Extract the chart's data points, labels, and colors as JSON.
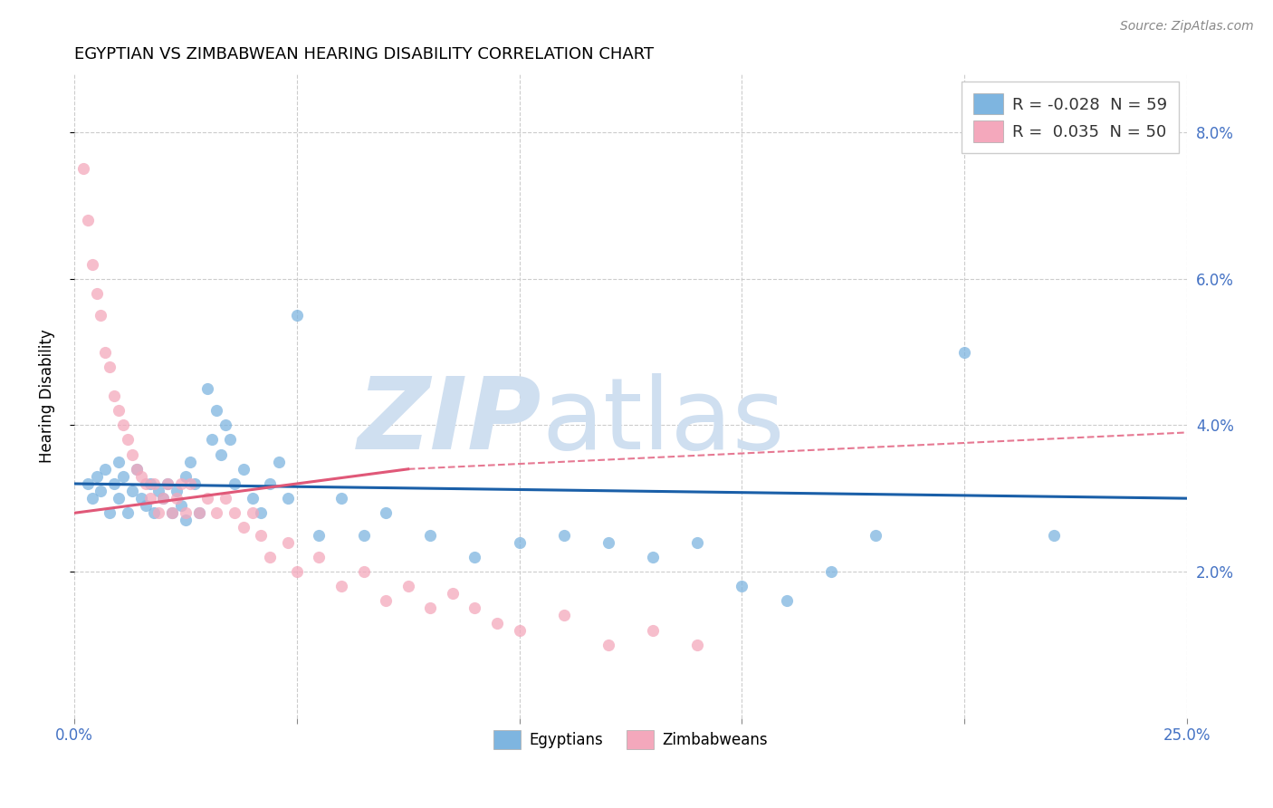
{
  "title": "EGYPTIAN VS ZIMBABWEAN HEARING DISABILITY CORRELATION CHART",
  "source": "Source: ZipAtlas.com",
  "ylabel": "Hearing Disability",
  "y_ticks": [
    0.02,
    0.04,
    0.06,
    0.08
  ],
  "y_tick_labels": [
    "2.0%",
    "4.0%",
    "6.0%",
    "8.0%"
  ],
  "xlim": [
    0.0,
    0.25
  ],
  "ylim": [
    0.0,
    0.088
  ],
  "blue_R": "-0.028",
  "blue_N": "59",
  "pink_R": "0.035",
  "pink_N": "50",
  "legend_label_blue": "Egyptians",
  "legend_label_pink": "Zimbabweans",
  "blue_color": "#7eb5e0",
  "pink_color": "#f4a8bc",
  "blue_line_color": "#1a5fa8",
  "pink_line_color": "#e05878",
  "watermark_color": "#cfdff0",
  "blue_line_y0": 0.032,
  "blue_line_y1": 0.03,
  "pink_line_y0": 0.028,
  "pink_line_solid_x1": 0.075,
  "pink_line_y_solid1": 0.034,
  "pink_line_y_dashed1": 0.039,
  "blue_scatter_x": [
    0.003,
    0.004,
    0.005,
    0.006,
    0.007,
    0.008,
    0.009,
    0.01,
    0.01,
    0.011,
    0.012,
    0.013,
    0.014,
    0.015,
    0.016,
    0.017,
    0.018,
    0.019,
    0.02,
    0.021,
    0.022,
    0.023,
    0.024,
    0.025,
    0.025,
    0.026,
    0.027,
    0.028,
    0.03,
    0.031,
    0.032,
    0.033,
    0.034,
    0.035,
    0.036,
    0.038,
    0.04,
    0.042,
    0.044,
    0.046,
    0.048,
    0.05,
    0.055,
    0.06,
    0.065,
    0.07,
    0.08,
    0.09,
    0.1,
    0.11,
    0.12,
    0.13,
    0.14,
    0.15,
    0.16,
    0.17,
    0.18,
    0.2,
    0.22
  ],
  "blue_scatter_y": [
    0.032,
    0.03,
    0.033,
    0.031,
    0.034,
    0.028,
    0.032,
    0.035,
    0.03,
    0.033,
    0.028,
    0.031,
    0.034,
    0.03,
    0.029,
    0.032,
    0.028,
    0.031,
    0.03,
    0.032,
    0.028,
    0.031,
    0.029,
    0.033,
    0.027,
    0.035,
    0.032,
    0.028,
    0.045,
    0.038,
    0.042,
    0.036,
    0.04,
    0.038,
    0.032,
    0.034,
    0.03,
    0.028,
    0.032,
    0.035,
    0.03,
    0.055,
    0.025,
    0.03,
    0.025,
    0.028,
    0.025,
    0.022,
    0.024,
    0.025,
    0.024,
    0.022,
    0.024,
    0.018,
    0.016,
    0.02,
    0.025,
    0.05,
    0.025
  ],
  "pink_scatter_x": [
    0.002,
    0.003,
    0.004,
    0.005,
    0.006,
    0.007,
    0.008,
    0.009,
    0.01,
    0.011,
    0.012,
    0.013,
    0.014,
    0.015,
    0.016,
    0.017,
    0.018,
    0.019,
    0.02,
    0.021,
    0.022,
    0.023,
    0.024,
    0.025,
    0.026,
    0.028,
    0.03,
    0.032,
    0.034,
    0.036,
    0.038,
    0.04,
    0.042,
    0.044,
    0.048,
    0.05,
    0.055,
    0.06,
    0.065,
    0.07,
    0.075,
    0.08,
    0.085,
    0.09,
    0.095,
    0.1,
    0.11,
    0.12,
    0.13,
    0.14
  ],
  "pink_scatter_y": [
    0.075,
    0.068,
    0.062,
    0.058,
    0.055,
    0.05,
    0.048,
    0.044,
    0.042,
    0.04,
    0.038,
    0.036,
    0.034,
    0.033,
    0.032,
    0.03,
    0.032,
    0.028,
    0.03,
    0.032,
    0.028,
    0.03,
    0.032,
    0.028,
    0.032,
    0.028,
    0.03,
    0.028,
    0.03,
    0.028,
    0.026,
    0.028,
    0.025,
    0.022,
    0.024,
    0.02,
    0.022,
    0.018,
    0.02,
    0.016,
    0.018,
    0.015,
    0.017,
    0.015,
    0.013,
    0.012,
    0.014,
    0.01,
    0.012,
    0.01
  ]
}
